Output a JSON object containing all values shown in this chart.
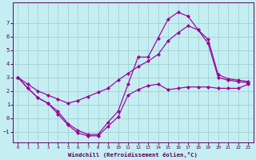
{
  "xlabel": "Windchill (Refroidissement éolien,°C)",
  "xlim": [
    -0.5,
    23.5
  ],
  "ylim": [
    -1.8,
    8.5
  ],
  "yticks": [
    -1,
    0,
    1,
    2,
    3,
    4,
    5,
    6,
    7
  ],
  "xticks": [
    0,
    1,
    2,
    3,
    4,
    5,
    6,
    7,
    8,
    9,
    10,
    11,
    12,
    13,
    14,
    15,
    16,
    17,
    18,
    19,
    20,
    21,
    22,
    23
  ],
  "bg_color": "#c5eef2",
  "grid_color": "#99cccc",
  "line_color": "#990099",
  "line1_y": [
    3.0,
    2.2,
    1.5,
    1.1,
    0.3,
    -0.5,
    -1.1,
    -1.3,
    -1.3,
    -0.6,
    0.1,
    1.7,
    2.1,
    2.4,
    2.5,
    2.1,
    2.2,
    2.3,
    2.3,
    2.3,
    2.2,
    2.2,
    2.2,
    2.5
  ],
  "line2_y": [
    3.0,
    2.2,
    1.5,
    1.1,
    0.5,
    -0.4,
    -0.9,
    -1.2,
    -1.2,
    -0.3,
    0.5,
    2.5,
    4.5,
    4.5,
    5.9,
    7.3,
    7.8,
    7.5,
    6.5,
    5.5,
    3.0,
    2.8,
    2.7,
    2.6
  ],
  "line3_y": [
    3.0,
    2.5,
    2.0,
    1.7,
    1.4,
    1.1,
    1.3,
    1.6,
    1.9,
    2.2,
    2.8,
    3.3,
    3.8,
    4.2,
    4.7,
    5.7,
    6.3,
    6.8,
    6.5,
    5.8,
    3.2,
    2.9,
    2.8,
    2.7
  ]
}
